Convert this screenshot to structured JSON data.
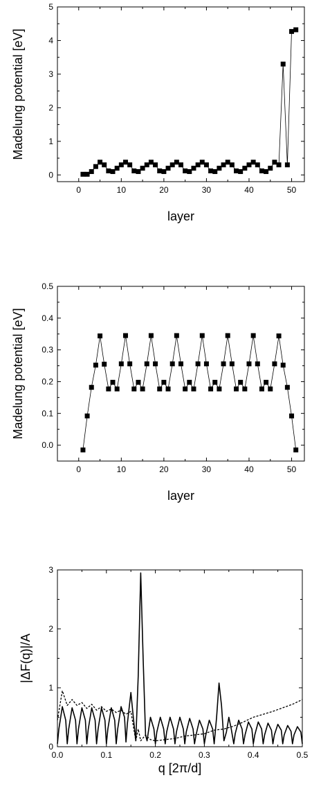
{
  "chart_data": [
    {
      "type": "scatter",
      "xlabel": "layer",
      "ylabel": "Madelung potential  [eV]",
      "xlim": [
        -5,
        53
      ],
      "ylim": [
        -0.2,
        5
      ],
      "xticks": [
        0,
        10,
        20,
        30,
        40,
        50
      ],
      "yticks": [
        0,
        1,
        2,
        3,
        4,
        5
      ],
      "grid": false,
      "series": [
        {
          "x": [
            1,
            2,
            3,
            4,
            5,
            6,
            7,
            8,
            9,
            10,
            11,
            12,
            13,
            14,
            15,
            16,
            17,
            18,
            19,
            20,
            21,
            22,
            23,
            24,
            25,
            26,
            27,
            28,
            29,
            30,
            31,
            32,
            33,
            34,
            35,
            36,
            37,
            38,
            39,
            40,
            41,
            42,
            43,
            44,
            45,
            46,
            47,
            48,
            49,
            50,
            51
          ],
          "y": [
            0.02,
            0.02,
            0.1,
            0.25,
            0.38,
            0.3,
            0.12,
            0.1,
            0.2,
            0.3,
            0.38,
            0.3,
            0.12,
            0.1,
            0.2,
            0.3,
            0.38,
            0.3,
            0.12,
            0.1,
            0.2,
            0.3,
            0.38,
            0.3,
            0.12,
            0.1,
            0.2,
            0.3,
            0.38,
            0.3,
            0.12,
            0.1,
            0.2,
            0.3,
            0.38,
            0.3,
            0.12,
            0.1,
            0.2,
            0.3,
            0.38,
            0.3,
            0.12,
            0.1,
            0.2,
            0.38,
            0.3,
            3.3,
            0.3,
            4.27,
            4.32
          ]
        }
      ]
    },
    {
      "type": "scatter",
      "xlabel": "layer",
      "ylabel": "Madelung potential  [eV]",
      "xlim": [
        -5,
        53
      ],
      "ylim": [
        -0.05,
        0.5
      ],
      "xticks": [
        0,
        10,
        20,
        30,
        40,
        50
      ],
      "yticks": [
        0.0,
        0.1,
        0.2,
        0.3,
        0.4,
        0.5
      ],
      "ytick_labels": [
        "0.0",
        "0.1",
        "0.2",
        "0.3",
        "0.4",
        "0.5"
      ],
      "grid": false,
      "series": [
        {
          "x": [
            1,
            2,
            3,
            4,
            5,
            6,
            7,
            8,
            9,
            10,
            11,
            12,
            13,
            14,
            15,
            16,
            17,
            18,
            19,
            20,
            21,
            22,
            23,
            24,
            25,
            26,
            27,
            28,
            29,
            30,
            31,
            32,
            33,
            34,
            35,
            36,
            37,
            38,
            39,
            40,
            41,
            42,
            43,
            44,
            45,
            46,
            47,
            48,
            49,
            50,
            51
          ],
          "y": [
            -0.015,
            0.092,
            0.182,
            0.252,
            0.344,
            0.255,
            0.177,
            0.198,
            0.177,
            0.256,
            0.345,
            0.256,
            0.177,
            0.198,
            0.177,
            0.256,
            0.345,
            0.256,
            0.177,
            0.198,
            0.177,
            0.256,
            0.345,
            0.256,
            0.177,
            0.198,
            0.177,
            0.256,
            0.345,
            0.256,
            0.177,
            0.198,
            0.177,
            0.256,
            0.345,
            0.256,
            0.177,
            0.198,
            0.177,
            0.256,
            0.345,
            0.256,
            0.177,
            0.198,
            0.177,
            0.256,
            0.344,
            0.252,
            0.182,
            0.092,
            -0.015
          ]
        }
      ]
    },
    {
      "type": "line",
      "xlabel": "q [2π/d]",
      "ylabel": "|ΔF(q)|/A",
      "xlim": [
        0,
        0.5
      ],
      "ylim": [
        0,
        3
      ],
      "xticks": [
        0.0,
        0.1,
        0.2,
        0.3,
        0.4,
        0.5
      ],
      "xtick_labels": [
        "0.0",
        "0.1",
        "0.2",
        "0.3",
        "0.4",
        "0.5"
      ],
      "yticks": [
        0,
        1,
        2,
        3
      ],
      "grid": false,
      "series": [
        {
          "style": "solid",
          "x": [
            0,
            0.003,
            0.01,
            0.017,
            0.02,
            0.023,
            0.03,
            0.037,
            0.04,
            0.043,
            0.05,
            0.057,
            0.06,
            0.063,
            0.07,
            0.077,
            0.08,
            0.083,
            0.09,
            0.097,
            0.1,
            0.103,
            0.11,
            0.117,
            0.12,
            0.123,
            0.13,
            0.137,
            0.14,
            0.143,
            0.15,
            0.155,
            0.16,
            0.165,
            0.17,
            0.175,
            0.18,
            0.183,
            0.19,
            0.197,
            0.2,
            0.203,
            0.21,
            0.217,
            0.22,
            0.223,
            0.23,
            0.237,
            0.24,
            0.243,
            0.25,
            0.257,
            0.26,
            0.263,
            0.27,
            0.277,
            0.28,
            0.283,
            0.29,
            0.297,
            0.3,
            0.303,
            0.31,
            0.317,
            0.32,
            0.325,
            0.33,
            0.335,
            0.34,
            0.345,
            0.35,
            0.355,
            0.36,
            0.363,
            0.37,
            0.377,
            0.38,
            0.383,
            0.39,
            0.397,
            0.4,
            0.403,
            0.41,
            0.417,
            0.42,
            0.423,
            0.43,
            0.437,
            0.44,
            0.443,
            0.45,
            0.457,
            0.46,
            0.463,
            0.47,
            0.477,
            0.48,
            0.483,
            0.49,
            0.497,
            0.5
          ],
          "y": [
            0.05,
            0.3,
            0.68,
            0.45,
            0.05,
            0.3,
            0.66,
            0.45,
            0.05,
            0.3,
            0.66,
            0.45,
            0.05,
            0.3,
            0.66,
            0.45,
            0.05,
            0.3,
            0.66,
            0.45,
            0.05,
            0.3,
            0.66,
            0.45,
            0.05,
            0.3,
            0.68,
            0.5,
            0.08,
            0.4,
            0.92,
            0.5,
            0.1,
            1.2,
            2.95,
            1.5,
            0.2,
            0.1,
            0.5,
            0.3,
            0.05,
            0.25,
            0.5,
            0.3,
            0.05,
            0.25,
            0.5,
            0.3,
            0.05,
            0.25,
            0.5,
            0.3,
            0.05,
            0.25,
            0.48,
            0.3,
            0.05,
            0.2,
            0.45,
            0.3,
            0.05,
            0.2,
            0.45,
            0.3,
            0.05,
            0.5,
            1.08,
            0.7,
            0.1,
            0.25,
            0.5,
            0.3,
            0.05,
            0.22,
            0.45,
            0.3,
            0.05,
            0.2,
            0.42,
            0.3,
            0.05,
            0.2,
            0.42,
            0.3,
            0.05,
            0.2,
            0.4,
            0.28,
            0.05,
            0.2,
            0.38,
            0.28,
            0.05,
            0.2,
            0.36,
            0.26,
            0.05,
            0.2,
            0.34,
            0.25,
            0.05
          ]
        },
        {
          "style": "dashed",
          "x": [
            0,
            0.01,
            0.02,
            0.03,
            0.04,
            0.05,
            0.06,
            0.07,
            0.08,
            0.09,
            0.1,
            0.11,
            0.12,
            0.13,
            0.14,
            0.15,
            0.16,
            0.165,
            0.17,
            0.18,
            0.19,
            0.2,
            0.22,
            0.24,
            0.26,
            0.28,
            0.3,
            0.32,
            0.34,
            0.36,
            0.38,
            0.4,
            0.42,
            0.44,
            0.46,
            0.48,
            0.5
          ],
          "y": [
            0.45,
            0.95,
            0.7,
            0.8,
            0.7,
            0.75,
            0.65,
            0.72,
            0.62,
            0.68,
            0.6,
            0.64,
            0.58,
            0.62,
            0.55,
            0.6,
            0.1,
            0.3,
            0.1,
            0.2,
            0.12,
            0.1,
            0.12,
            0.14,
            0.18,
            0.2,
            0.22,
            0.28,
            0.3,
            0.35,
            0.42,
            0.5,
            0.55,
            0.6,
            0.66,
            0.72,
            0.8
          ]
        }
      ]
    }
  ]
}
